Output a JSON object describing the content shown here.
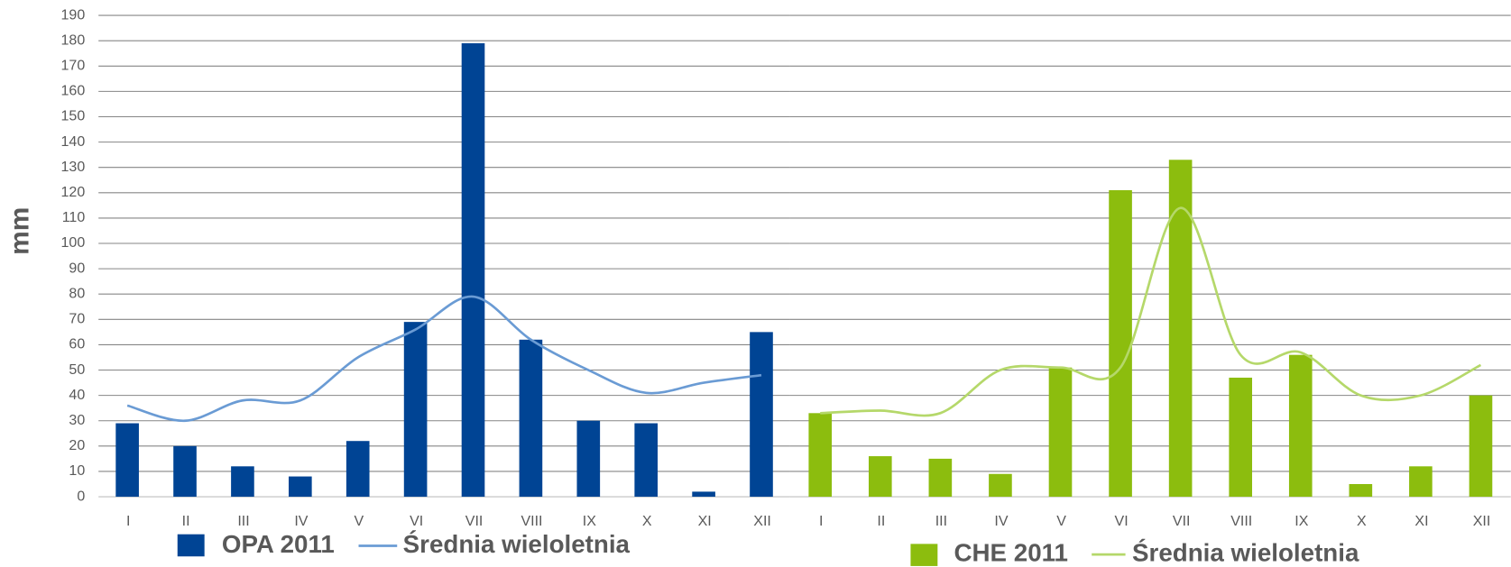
{
  "chart_data": [
    {
      "type": "bar_line",
      "ylabel": "mm",
      "categories": [
        "I",
        "II",
        "III",
        "IV",
        "V",
        "VI",
        "VII",
        "VIII",
        "IX",
        "X",
        "XI",
        "XII"
      ],
      "series": [
        {
          "name": "OPA 2011",
          "color": "#004494",
          "kind": "bar",
          "values": [
            29,
            20,
            12,
            8,
            22,
            69,
            179,
            62,
            30,
            29,
            2,
            65
          ]
        },
        {
          "name": "Średnia wieloletnia",
          "color": "#6a9bd4",
          "kind": "line",
          "values": [
            36,
            30,
            38,
            38,
            55,
            66,
            79,
            62,
            50,
            41,
            45,
            48
          ]
        }
      ],
      "ylim": [
        0,
        190
      ],
      "yticks": [
        0,
        10,
        20,
        30,
        40,
        50,
        60,
        70,
        80,
        90,
        100,
        110,
        120,
        130,
        140,
        150,
        160,
        170,
        180,
        190
      ],
      "grid": true
    },
    {
      "type": "bar_line",
      "categories": [
        "I",
        "II",
        "III",
        "IV",
        "V",
        "VI",
        "VII",
        "VIII",
        "IX",
        "X",
        "XI",
        "XII"
      ],
      "series": [
        {
          "name": "CHE 2011",
          "color": "#8cbd0e",
          "kind": "bar",
          "values": [
            33,
            16,
            15,
            9,
            51,
            121,
            133,
            47,
            56,
            5,
            12,
            40
          ]
        },
        {
          "name": "Średnia wieloletnia",
          "color": "#b5d86a",
          "kind": "line",
          "values": [
            33,
            34,
            33,
            50,
            51,
            51,
            114,
            56,
            57,
            40,
            40,
            52
          ]
        }
      ],
      "ylim": [
        0,
        190
      ],
      "yticks": [
        0,
        10,
        20,
        30,
        40,
        50,
        60,
        70,
        80,
        90,
        100,
        110,
        120,
        130,
        140,
        150,
        160,
        170,
        180,
        190
      ],
      "grid": true
    }
  ]
}
